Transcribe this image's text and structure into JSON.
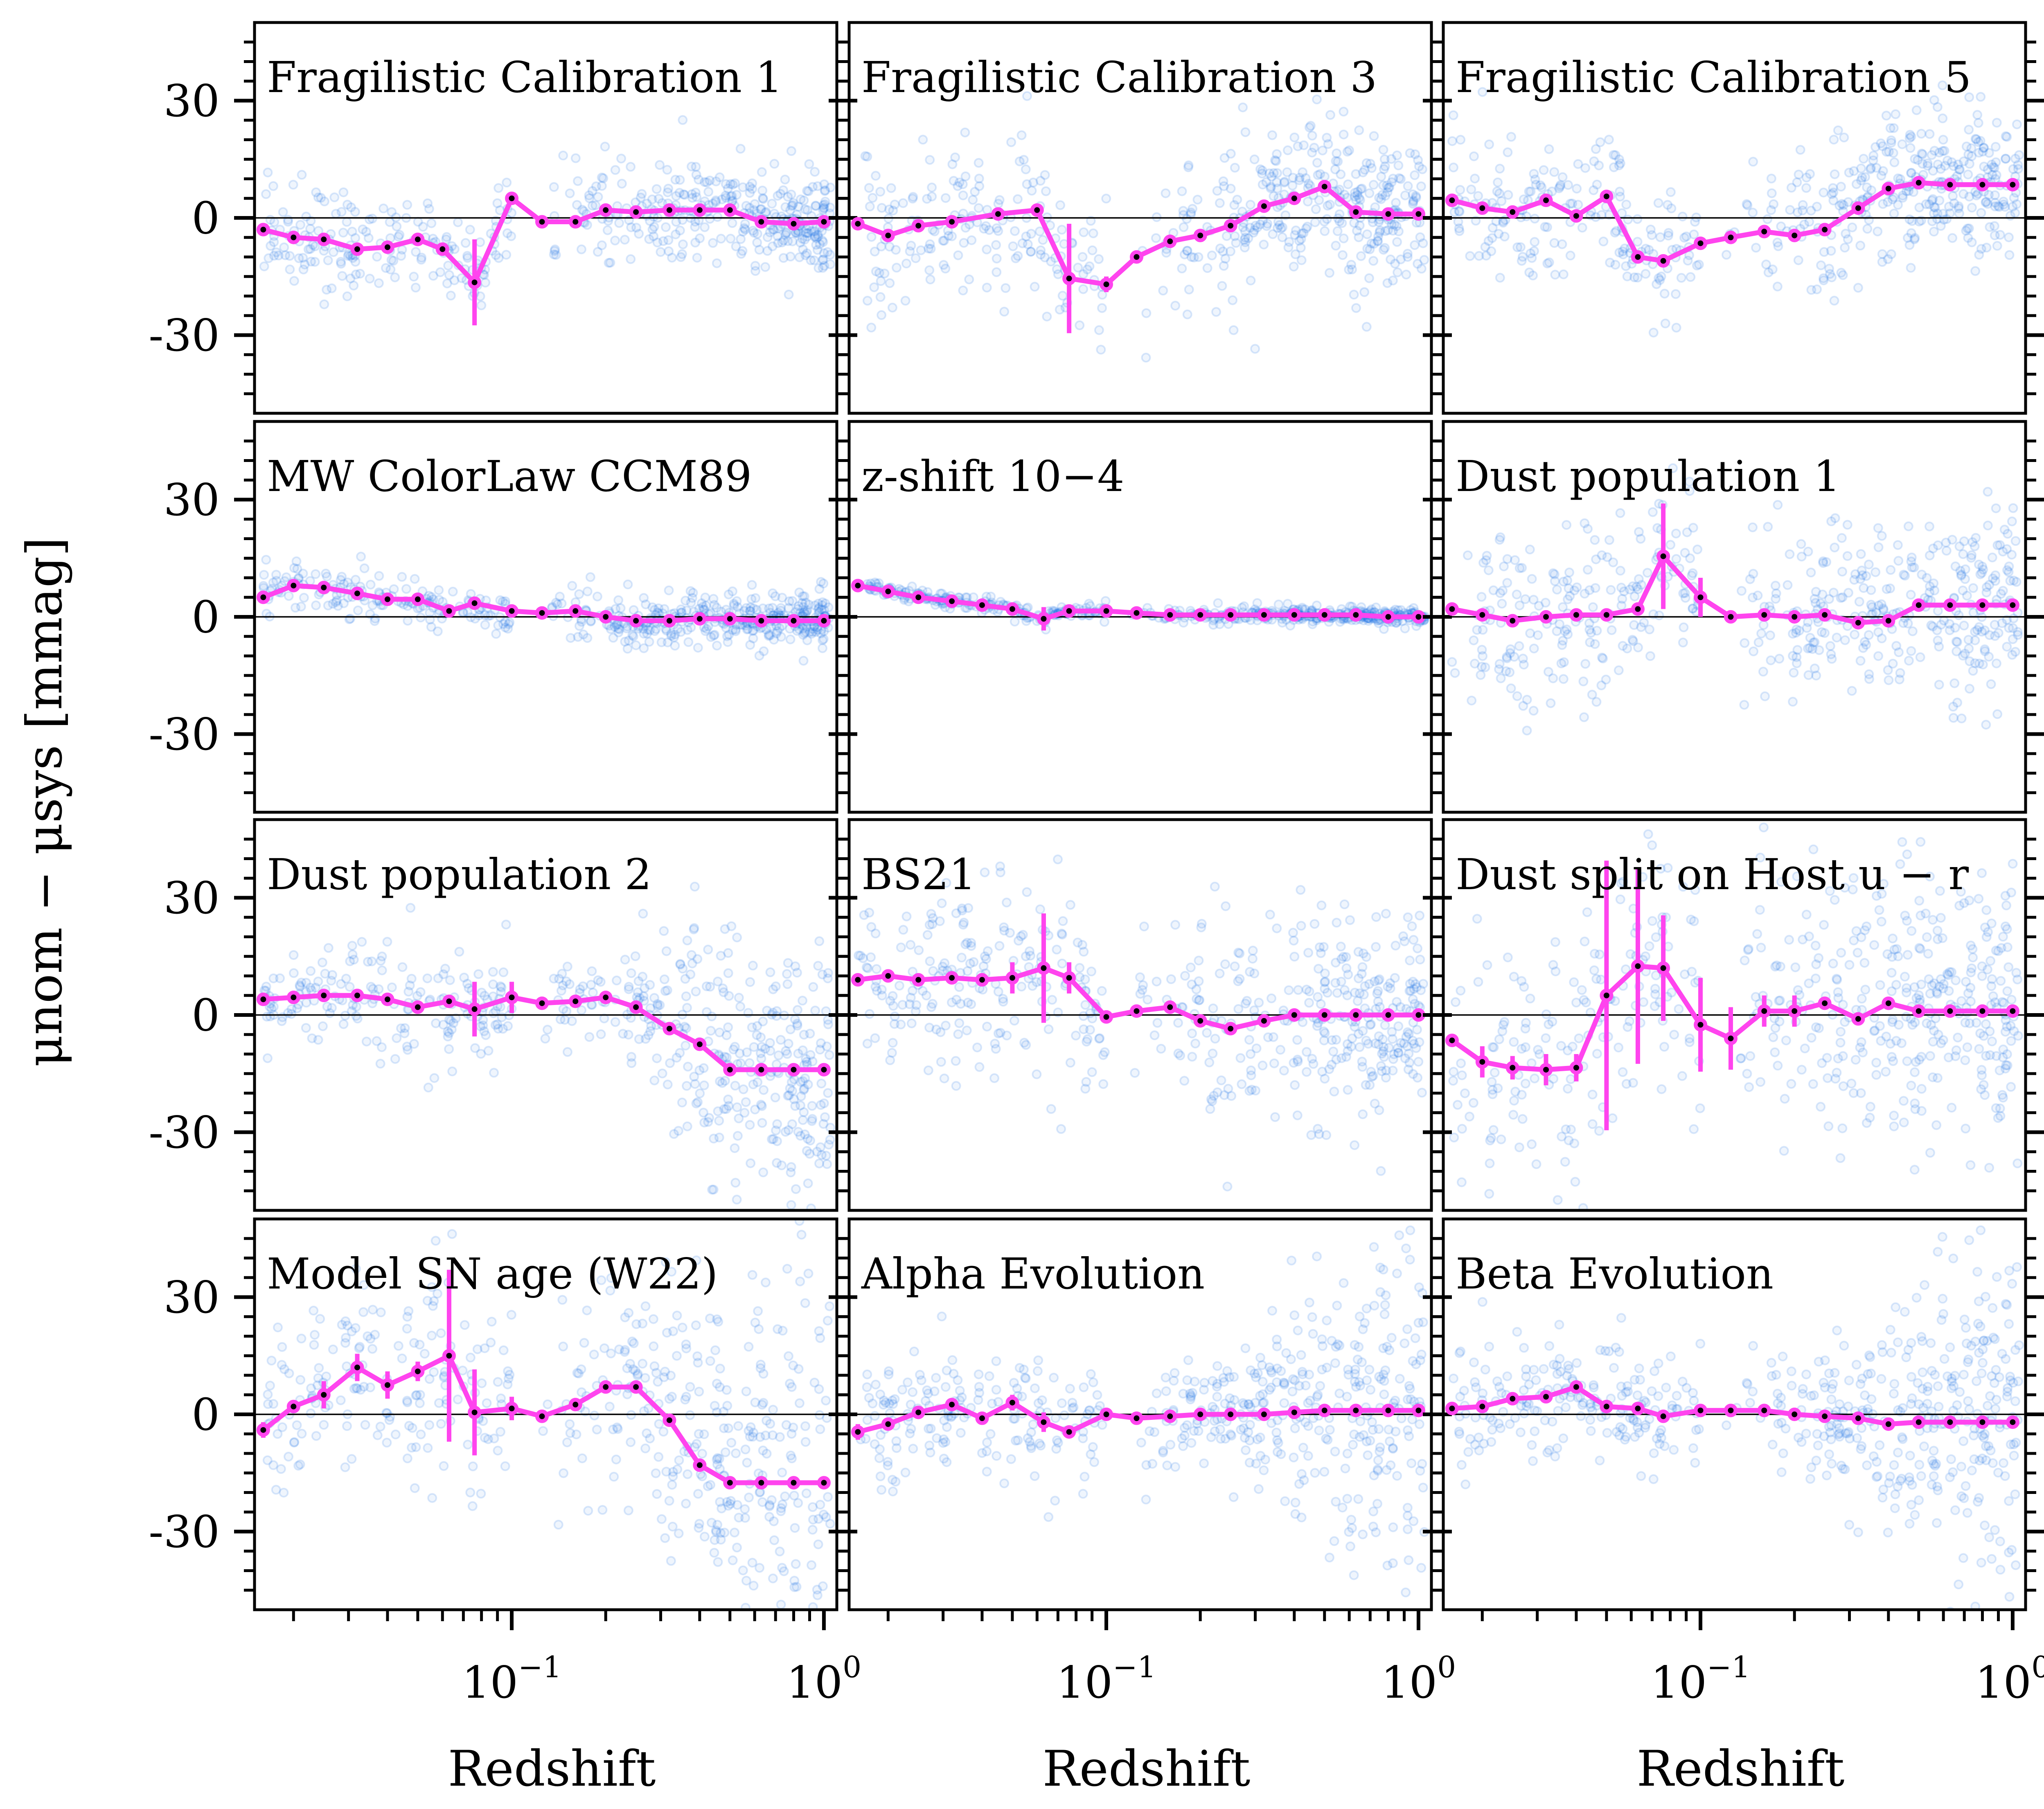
{
  "figure": {
    "xlabel": "Redshift",
    "ylabel": "μnom − μsys [mmag]",
    "xscale": "log",
    "xlim": [
      0.015,
      1.1
    ],
    "ylim": [
      -50,
      50
    ],
    "yticks": [
      {
        "value": 30,
        "label": "30"
      },
      {
        "value": 0,
        "label": "0"
      },
      {
        "value": -30,
        "label": "-30"
      }
    ],
    "xticks": [
      {
        "value": 0.1,
        "base": "10",
        "exp": "−1"
      },
      {
        "value": 1,
        "base": "10",
        "exp": "0"
      }
    ],
    "colors": {
      "scatter": "#1a73e8",
      "trend": "#ff44ee",
      "marker_core": "#000000"
    }
  },
  "chart_data": [
    {
      "type": "scatter",
      "title": "Fragilistic Calibration 1",
      "scatter_style": "flat",
      "spread": 6,
      "x": [
        0.016,
        0.02,
        0.025,
        0.032,
        0.04,
        0.05,
        0.06,
        0.076,
        0.1,
        0.125,
        0.16,
        0.2,
        0.25,
        0.32,
        0.4,
        0.5,
        0.63,
        0.8,
        1.0
      ],
      "y": [
        -3,
        -5,
        -5.5,
        -8,
        -7.5,
        -5.5,
        -8,
        -16.5,
        5,
        -1,
        -1,
        2,
        1.5,
        2,
        2,
        2,
        -1,
        -1.5,
        -1
      ],
      "err": [
        0,
        0,
        0,
        0,
        0,
        0,
        0,
        11,
        0,
        0,
        0,
        0,
        0,
        0,
        0,
        0,
        0,
        0,
        0
      ]
    },
    {
      "type": "scatter",
      "title": "Fragilistic Calibration 3",
      "scatter_style": "rising",
      "spread": 8,
      "x": [
        0.016,
        0.02,
        0.025,
        0.032,
        0.045,
        0.06,
        0.076,
        0.1,
        0.125,
        0.16,
        0.2,
        0.25,
        0.32,
        0.4,
        0.5,
        0.63,
        0.8,
        1.0
      ],
      "y": [
        -1.5,
        -4.5,
        -2,
        -1,
        1,
        2,
        -15.5,
        -17,
        -10,
        -6,
        -4.5,
        -2,
        3,
        5,
        8,
        1.5,
        1,
        1
      ],
      "err": [
        0,
        0,
        0,
        0,
        0,
        0,
        14,
        2,
        0,
        0,
        0,
        0,
        0,
        0,
        0,
        0,
        0,
        0
      ]
    },
    {
      "type": "scatter",
      "title": "Fragilistic Calibration 5",
      "scatter_style": "wide",
      "spread": 9,
      "x": [
        0.016,
        0.02,
        0.025,
        0.032,
        0.04,
        0.05,
        0.063,
        0.076,
        0.1,
        0.125,
        0.16,
        0.2,
        0.25,
        0.32,
        0.4,
        0.5,
        0.63,
        0.8,
        1.0
      ],
      "y": [
        4.5,
        2.5,
        1.5,
        4.5,
        0.5,
        5.5,
        -10,
        -11,
        -6.5,
        -5,
        -3.5,
        -4.5,
        -3,
        2.5,
        7.5,
        9,
        8.5,
        8.5,
        8.5
      ],
      "err": [
        0,
        0,
        0,
        0,
        0,
        0,
        0,
        0,
        0,
        0,
        0,
        0,
        0,
        0,
        0,
        0,
        0,
        0,
        0
      ]
    },
    {
      "type": "scatter",
      "title": "MW ColorLaw CCM89",
      "scatter_style": "tight",
      "spread": 3,
      "x": [
        0.016,
        0.02,
        0.025,
        0.032,
        0.04,
        0.05,
        0.063,
        0.076,
        0.1,
        0.125,
        0.16,
        0.2,
        0.25,
        0.32,
        0.4,
        0.5,
        0.63,
        0.8,
        1.0
      ],
      "y": [
        5,
        8,
        7.5,
        6,
        4.5,
        4.5,
        1.5,
        3.5,
        1.5,
        1,
        1.5,
        0,
        -1,
        -1,
        -0.5,
        -0.5,
        -1,
        -1,
        -1
      ],
      "err": [
        0,
        0,
        0,
        0,
        0,
        0,
        0,
        0,
        0,
        0,
        0,
        0,
        0,
        0,
        0,
        0,
        0,
        0,
        0
      ]
    },
    {
      "type": "scatter",
      "title": "z-shift 10−4",
      "title_math": true,
      "scatter_style": "very_tight",
      "spread": 1,
      "x": [
        0.016,
        0.02,
        0.025,
        0.032,
        0.04,
        0.05,
        0.063,
        0.076,
        0.1,
        0.125,
        0.16,
        0.2,
        0.25,
        0.32,
        0.4,
        0.5,
        0.63,
        0.8,
        1.0
      ],
      "y": [
        8,
        6.5,
        5,
        4,
        3,
        2,
        -0.5,
        1.5,
        1.5,
        1,
        0.5,
        0.5,
        0.5,
        0.5,
        0.5,
        0.5,
        0.5,
        0,
        0
      ],
      "err": [
        0,
        0,
        0,
        0,
        0,
        0,
        3,
        0,
        0,
        0,
        0,
        0,
        0,
        0,
        0,
        0,
        0,
        0,
        0
      ]
    },
    {
      "type": "scatter",
      "title": "Dust population 1",
      "scatter_style": "wide",
      "spread": 12,
      "x": [
        0.016,
        0.02,
        0.025,
        0.032,
        0.04,
        0.05,
        0.063,
        0.076,
        0.1,
        0.125,
        0.16,
        0.2,
        0.25,
        0.32,
        0.4,
        0.5,
        0.63,
        0.8,
        1.0
      ],
      "y": [
        2,
        0.5,
        -1,
        0,
        0.5,
        0.5,
        2,
        15.5,
        5,
        0,
        0.5,
        0,
        0.5,
        -1.5,
        -1,
        3,
        3,
        3,
        3
      ],
      "err": [
        0,
        0,
        0,
        0,
        0,
        0,
        0,
        13.5,
        5,
        0,
        0,
        0,
        0,
        0,
        0,
        0,
        0,
        0,
        0
      ]
    },
    {
      "type": "scatter",
      "title": "Dust population 2",
      "scatter_style": "falling",
      "spread": 10,
      "x": [
        0.016,
        0.02,
        0.025,
        0.032,
        0.04,
        0.05,
        0.063,
        0.076,
        0.1,
        0.125,
        0.16,
        0.2,
        0.25,
        0.32,
        0.4,
        0.5,
        0.63,
        0.8,
        1.0
      ],
      "y": [
        4,
        4.5,
        5,
        5,
        4,
        2,
        3.5,
        1.5,
        4.5,
        3,
        3.5,
        4.5,
        2,
        -3.5,
        -7.5,
        -14,
        -14,
        -14,
        -14
      ],
      "err": [
        0,
        0,
        0,
        0,
        0,
        0,
        0,
        7,
        4,
        0,
        0,
        0,
        0,
        0,
        0,
        0,
        0,
        0,
        0
      ]
    },
    {
      "type": "scatter",
      "title": "BS21",
      "scatter_style": "wide",
      "spread": 13,
      "x": [
        0.016,
        0.02,
        0.025,
        0.032,
        0.04,
        0.05,
        0.063,
        0.076,
        0.1,
        0.125,
        0.16,
        0.2,
        0.25,
        0.32,
        0.4,
        0.5,
        0.63,
        0.8,
        1.0
      ],
      "y": [
        9,
        10,
        9,
        9.5,
        9,
        9.5,
        12,
        9.5,
        -0.5,
        1,
        2,
        -1.5,
        -3.5,
        -1.5,
        0,
        0,
        0,
        0,
        0
      ],
      "err": [
        0,
        0,
        0,
        0,
        0,
        4,
        14,
        4,
        0,
        0,
        0,
        0,
        0,
        0,
        0,
        0,
        0,
        0,
        0
      ]
    },
    {
      "type": "scatter",
      "title": "Dust split on Host u − r",
      "title_math": true,
      "scatter_style": "wide",
      "spread": 17,
      "x": [
        0.016,
        0.02,
        0.025,
        0.032,
        0.04,
        0.05,
        0.063,
        0.076,
        0.1,
        0.125,
        0.16,
        0.2,
        0.25,
        0.32,
        0.4,
        0.5,
        0.63,
        0.8,
        1.0
      ],
      "y": [
        -6.5,
        -12,
        -13.5,
        -14,
        -13.5,
        5,
        12.5,
        12,
        -2.5,
        -6,
        1,
        1,
        3,
        -1,
        3,
        1,
        1,
        1,
        1
      ],
      "err": [
        0,
        4,
        3,
        4,
        3.5,
        34.5,
        25,
        13.5,
        12,
        8,
        4,
        4,
        0,
        0,
        0,
        0,
        0,
        0,
        0
      ]
    },
    {
      "type": "scatter",
      "title": "Model SN age (W22)",
      "scatter_style": "wide_fall",
      "spread": 14,
      "x": [
        0.016,
        0.02,
        0.025,
        0.032,
        0.04,
        0.05,
        0.063,
        0.076,
        0.1,
        0.125,
        0.16,
        0.2,
        0.25,
        0.32,
        0.4,
        0.5,
        0.63,
        0.8,
        1.0
      ],
      "y": [
        -4,
        2,
        5,
        12,
        7.5,
        11,
        15,
        0.5,
        1.5,
        -0.5,
        2.5,
        7,
        7,
        -1.5,
        -13,
        -17.5,
        -17.5,
        -17.5,
        -17.5
      ],
      "err": [
        2,
        0,
        3.5,
        3.5,
        3.5,
        2.5,
        22,
        11,
        3,
        0,
        0,
        0,
        0,
        0,
        0,
        0,
        0,
        0,
        0
      ]
    },
    {
      "type": "scatter",
      "title": "Alpha Evolution",
      "scatter_style": "wide_flare",
      "spread": 9,
      "x": [
        0.016,
        0.02,
        0.025,
        0.032,
        0.04,
        0.05,
        0.063,
        0.076,
        0.1,
        0.125,
        0.16,
        0.2,
        0.25,
        0.32,
        0.4,
        0.5,
        0.63,
        0.8,
        1.0
      ],
      "y": [
        -4.5,
        -2.5,
        0.5,
        2.5,
        -1,
        3,
        -2,
        -4.5,
        0,
        -1,
        -0.5,
        0,
        0,
        0,
        0.5,
        1,
        1,
        1,
        1
      ],
      "err": [
        2,
        0,
        0,
        0,
        0,
        2,
        2.5,
        0,
        0,
        0,
        0,
        0,
        0,
        0,
        0,
        0,
        0,
        0,
        0
      ]
    },
    {
      "type": "scatter",
      "title": "Beta Evolution",
      "scatter_style": "wide_flare",
      "spread": 9,
      "x": [
        0.016,
        0.02,
        0.025,
        0.032,
        0.04,
        0.05,
        0.063,
        0.076,
        0.1,
        0.125,
        0.16,
        0.2,
        0.25,
        0.32,
        0.4,
        0.5,
        0.63,
        0.8,
        1.0
      ],
      "y": [
        1.5,
        2,
        4,
        4.5,
        7,
        2,
        1.5,
        -0.5,
        1,
        1,
        1,
        0,
        -0.5,
        -1,
        -2.5,
        -2,
        -2,
        -2,
        -2
      ],
      "err": [
        0,
        0,
        0,
        0,
        0,
        0,
        0,
        0,
        0,
        0,
        0,
        0,
        0,
        0,
        0,
        0,
        0,
        0,
        0
      ]
    }
  ]
}
